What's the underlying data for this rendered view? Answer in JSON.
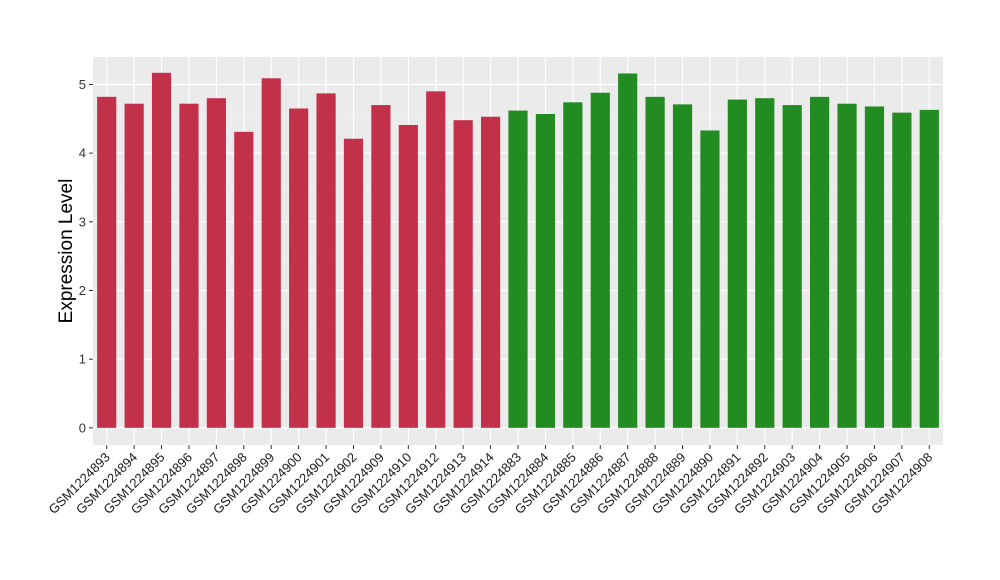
{
  "chart_data": {
    "type": "bar",
    "title": "",
    "xlabel": "",
    "ylabel": "Expression Level",
    "ylim": [
      -0.25,
      5.4
    ],
    "yticks": [
      0,
      1,
      2,
      3,
      4,
      5
    ],
    "grid": true,
    "background": "#ebebeb",
    "categories": [
      "GSM1224893",
      "GSM1224894",
      "GSM1224895",
      "GSM1224896",
      "GSM1224897",
      "GSM1224898",
      "GSM1224899",
      "GSM1224900",
      "GSM1224901",
      "GSM1224902",
      "GSM1224909",
      "GSM1224910",
      "GSM1224912",
      "GSM1224913",
      "GSM1224914",
      "GSM1224883",
      "GSM1224884",
      "GSM1224885",
      "GSM1224886",
      "GSM1224887",
      "GSM1224888",
      "GSM1224889",
      "GSM1224890",
      "GSM1224891",
      "GSM1224892",
      "GSM1224903",
      "GSM1224904",
      "GSM1224905",
      "GSM1224906",
      "GSM1224907",
      "GSM1224908"
    ],
    "values": [
      4.82,
      4.72,
      5.17,
      4.72,
      4.8,
      4.31,
      5.09,
      4.65,
      4.87,
      4.21,
      4.7,
      4.41,
      4.9,
      4.48,
      4.53,
      4.62,
      4.57,
      4.74,
      4.88,
      5.16,
      4.82,
      4.71,
      4.33,
      4.78,
      4.8,
      4.7,
      4.82,
      4.72,
      4.68,
      4.59,
      4.63
    ],
    "colors": [
      "#c3304a",
      "#c3304a",
      "#c3304a",
      "#c3304a",
      "#c3304a",
      "#c3304a",
      "#c3304a",
      "#c3304a",
      "#c3304a",
      "#c3304a",
      "#c3304a",
      "#c3304a",
      "#c3304a",
      "#c3304a",
      "#c3304a",
      "#228b22",
      "#228b22",
      "#228b22",
      "#228b22",
      "#228b22",
      "#228b22",
      "#228b22",
      "#228b22",
      "#228b22",
      "#228b22",
      "#228b22",
      "#228b22",
      "#228b22",
      "#228b22",
      "#228b22",
      "#228b22"
    ]
  }
}
